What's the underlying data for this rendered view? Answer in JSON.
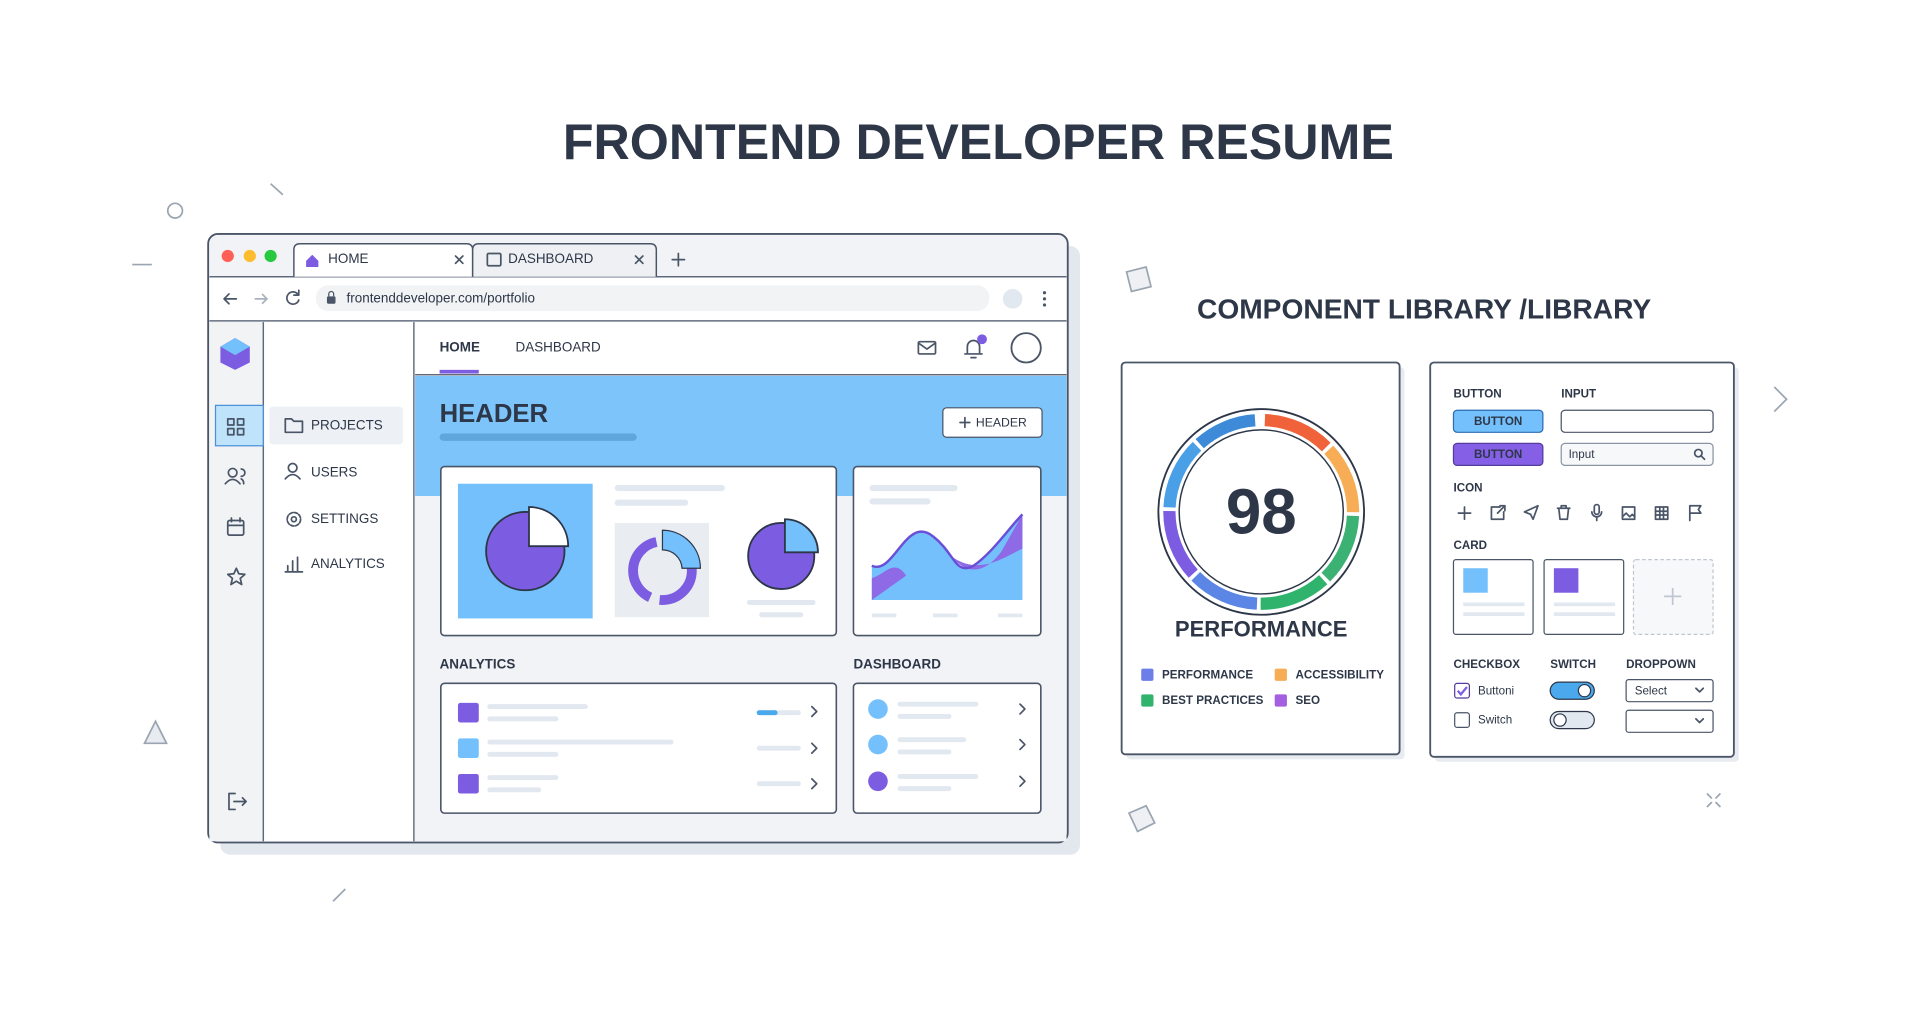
{
  "title": "FRONTEND DEVELOPER RESUME",
  "browser": {
    "tabs": [
      "HOME",
      "DASHBOARD"
    ],
    "url": "frontenddeveloper.com/portfolio",
    "sidebar": [
      "PROJECTS",
      "USERS",
      "SETTINGS",
      "ANALYTICS"
    ],
    "nav": [
      "HOME",
      "DASHBOARD"
    ],
    "header": {
      "title": "HEADER",
      "button": "HEADER"
    },
    "sections": [
      "ANALYTICS",
      "DASHBOARD"
    ]
  },
  "library": {
    "title": "COMPONENT LIBRARY /LIBRARY",
    "performance": {
      "score": 98,
      "label": "PERFORMANCE",
      "legend": [
        {
          "label": "PERFORMANCE",
          "color": "#6c7ee8"
        },
        {
          "label": "ACCESSIBILITY",
          "color": "#f6ad55"
        },
        {
          "label": "BEST PRACTICES",
          "color": "#2fb36d"
        },
        {
          "label": "SEO",
          "color": "#a45ee0"
        }
      ]
    },
    "components": {
      "button_label": "BUTTON",
      "input_label": "INPUT",
      "buttons": [
        "BUTTON",
        "BUTTON"
      ],
      "input_placeholder": "Input",
      "icon_label": "ICON",
      "card_label": "CARD",
      "checkbox_label": "CHECKBOX",
      "switch_label": "SWITCH",
      "dropdown_label": "DROPPOWN",
      "checkboxes": [
        "Buttoni",
        "Switch"
      ],
      "dropdown_value": "Select"
    }
  }
}
